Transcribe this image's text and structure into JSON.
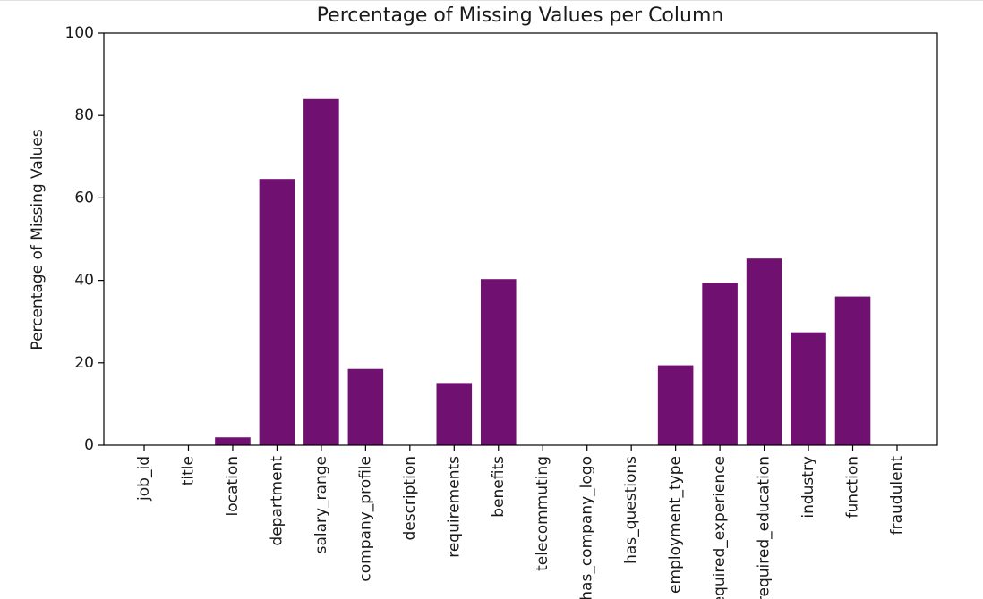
{
  "chart_data": {
    "type": "bar",
    "title": "Percentage of Missing Values per Column",
    "xlabel": "",
    "ylabel": "Percentage of Missing Values",
    "ylim": [
      0,
      100
    ],
    "yticks": [
      0,
      20,
      40,
      60,
      80,
      100
    ],
    "grid": false,
    "bar_color": "#701070",
    "categories": [
      "job_id",
      "title",
      "location",
      "department",
      "salary_range",
      "company_profile",
      "description",
      "requirements",
      "benefits",
      "telecommuting",
      "has_company_logo",
      "has_questions",
      "employment_type",
      "required_experience",
      "required_education",
      "industry",
      "function",
      "fraudulent"
    ],
    "values": [
      0,
      0,
      1.9,
      64.6,
      84.0,
      18.5,
      0.006,
      15.1,
      40.3,
      0,
      0,
      0,
      19.4,
      39.4,
      45.3,
      27.4,
      36.1,
      0
    ]
  }
}
